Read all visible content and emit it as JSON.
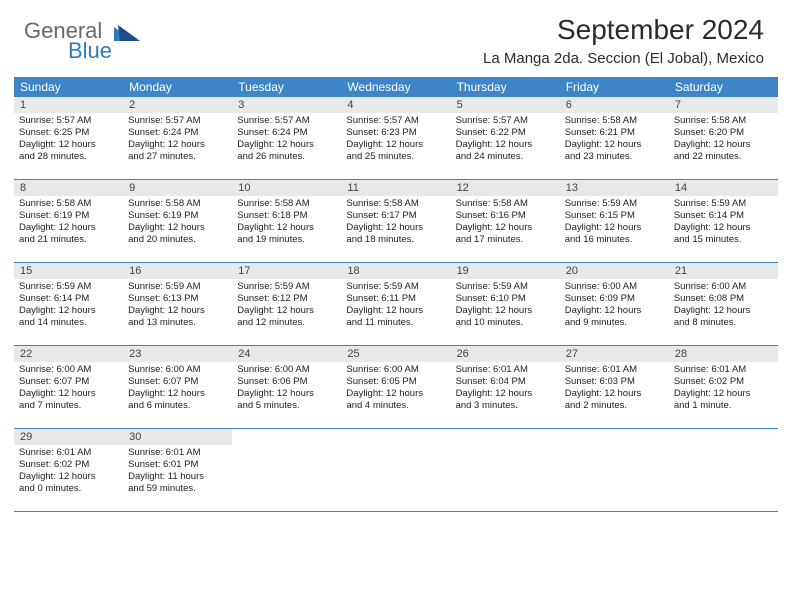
{
  "logo": {
    "general": "General",
    "blue": "Blue"
  },
  "title": "September 2024",
  "location": "La Manga 2da. Seccion (El Jobal), Mexico",
  "colors": {
    "header_bg": "#3d85c6",
    "daynum_bg": "#e8e8e8",
    "logo_gray": "#666a6d",
    "logo_blue": "#2f7abf"
  },
  "day_names": [
    "Sunday",
    "Monday",
    "Tuesday",
    "Wednesday",
    "Thursday",
    "Friday",
    "Saturday"
  ],
  "weeks": [
    [
      {
        "n": "1",
        "sr": "Sunrise: 5:57 AM",
        "ss": "Sunset: 6:25 PM",
        "d1": "Daylight: 12 hours",
        "d2": "and 28 minutes."
      },
      {
        "n": "2",
        "sr": "Sunrise: 5:57 AM",
        "ss": "Sunset: 6:24 PM",
        "d1": "Daylight: 12 hours",
        "d2": "and 27 minutes."
      },
      {
        "n": "3",
        "sr": "Sunrise: 5:57 AM",
        "ss": "Sunset: 6:24 PM",
        "d1": "Daylight: 12 hours",
        "d2": "and 26 minutes."
      },
      {
        "n": "4",
        "sr": "Sunrise: 5:57 AM",
        "ss": "Sunset: 6:23 PM",
        "d1": "Daylight: 12 hours",
        "d2": "and 25 minutes."
      },
      {
        "n": "5",
        "sr": "Sunrise: 5:57 AM",
        "ss": "Sunset: 6:22 PM",
        "d1": "Daylight: 12 hours",
        "d2": "and 24 minutes."
      },
      {
        "n": "6",
        "sr": "Sunrise: 5:58 AM",
        "ss": "Sunset: 6:21 PM",
        "d1": "Daylight: 12 hours",
        "d2": "and 23 minutes."
      },
      {
        "n": "7",
        "sr": "Sunrise: 5:58 AM",
        "ss": "Sunset: 6:20 PM",
        "d1": "Daylight: 12 hours",
        "d2": "and 22 minutes."
      }
    ],
    [
      {
        "n": "8",
        "sr": "Sunrise: 5:58 AM",
        "ss": "Sunset: 6:19 PM",
        "d1": "Daylight: 12 hours",
        "d2": "and 21 minutes."
      },
      {
        "n": "9",
        "sr": "Sunrise: 5:58 AM",
        "ss": "Sunset: 6:19 PM",
        "d1": "Daylight: 12 hours",
        "d2": "and 20 minutes."
      },
      {
        "n": "10",
        "sr": "Sunrise: 5:58 AM",
        "ss": "Sunset: 6:18 PM",
        "d1": "Daylight: 12 hours",
        "d2": "and 19 minutes."
      },
      {
        "n": "11",
        "sr": "Sunrise: 5:58 AM",
        "ss": "Sunset: 6:17 PM",
        "d1": "Daylight: 12 hours",
        "d2": "and 18 minutes."
      },
      {
        "n": "12",
        "sr": "Sunrise: 5:58 AM",
        "ss": "Sunset: 6:16 PM",
        "d1": "Daylight: 12 hours",
        "d2": "and 17 minutes."
      },
      {
        "n": "13",
        "sr": "Sunrise: 5:59 AM",
        "ss": "Sunset: 6:15 PM",
        "d1": "Daylight: 12 hours",
        "d2": "and 16 minutes."
      },
      {
        "n": "14",
        "sr": "Sunrise: 5:59 AM",
        "ss": "Sunset: 6:14 PM",
        "d1": "Daylight: 12 hours",
        "d2": "and 15 minutes."
      }
    ],
    [
      {
        "n": "15",
        "sr": "Sunrise: 5:59 AM",
        "ss": "Sunset: 6:14 PM",
        "d1": "Daylight: 12 hours",
        "d2": "and 14 minutes."
      },
      {
        "n": "16",
        "sr": "Sunrise: 5:59 AM",
        "ss": "Sunset: 6:13 PM",
        "d1": "Daylight: 12 hours",
        "d2": "and 13 minutes."
      },
      {
        "n": "17",
        "sr": "Sunrise: 5:59 AM",
        "ss": "Sunset: 6:12 PM",
        "d1": "Daylight: 12 hours",
        "d2": "and 12 minutes."
      },
      {
        "n": "18",
        "sr": "Sunrise: 5:59 AM",
        "ss": "Sunset: 6:11 PM",
        "d1": "Daylight: 12 hours",
        "d2": "and 11 minutes."
      },
      {
        "n": "19",
        "sr": "Sunrise: 5:59 AM",
        "ss": "Sunset: 6:10 PM",
        "d1": "Daylight: 12 hours",
        "d2": "and 10 minutes."
      },
      {
        "n": "20",
        "sr": "Sunrise: 6:00 AM",
        "ss": "Sunset: 6:09 PM",
        "d1": "Daylight: 12 hours",
        "d2": "and 9 minutes."
      },
      {
        "n": "21",
        "sr": "Sunrise: 6:00 AM",
        "ss": "Sunset: 6:08 PM",
        "d1": "Daylight: 12 hours",
        "d2": "and 8 minutes."
      }
    ],
    [
      {
        "n": "22",
        "sr": "Sunrise: 6:00 AM",
        "ss": "Sunset: 6:07 PM",
        "d1": "Daylight: 12 hours",
        "d2": "and 7 minutes."
      },
      {
        "n": "23",
        "sr": "Sunrise: 6:00 AM",
        "ss": "Sunset: 6:07 PM",
        "d1": "Daylight: 12 hours",
        "d2": "and 6 minutes."
      },
      {
        "n": "24",
        "sr": "Sunrise: 6:00 AM",
        "ss": "Sunset: 6:06 PM",
        "d1": "Daylight: 12 hours",
        "d2": "and 5 minutes."
      },
      {
        "n": "25",
        "sr": "Sunrise: 6:00 AM",
        "ss": "Sunset: 6:05 PM",
        "d1": "Daylight: 12 hours",
        "d2": "and 4 minutes."
      },
      {
        "n": "26",
        "sr": "Sunrise: 6:01 AM",
        "ss": "Sunset: 6:04 PM",
        "d1": "Daylight: 12 hours",
        "d2": "and 3 minutes."
      },
      {
        "n": "27",
        "sr": "Sunrise: 6:01 AM",
        "ss": "Sunset: 6:03 PM",
        "d1": "Daylight: 12 hours",
        "d2": "and 2 minutes."
      },
      {
        "n": "28",
        "sr": "Sunrise: 6:01 AM",
        "ss": "Sunset: 6:02 PM",
        "d1": "Daylight: 12 hours",
        "d2": "and 1 minute."
      }
    ],
    [
      {
        "n": "29",
        "sr": "Sunrise: 6:01 AM",
        "ss": "Sunset: 6:02 PM",
        "d1": "Daylight: 12 hours",
        "d2": "and 0 minutes."
      },
      {
        "n": "30",
        "sr": "Sunrise: 6:01 AM",
        "ss": "Sunset: 6:01 PM",
        "d1": "Daylight: 11 hours",
        "d2": "and 59 minutes."
      },
      null,
      null,
      null,
      null,
      null
    ]
  ]
}
